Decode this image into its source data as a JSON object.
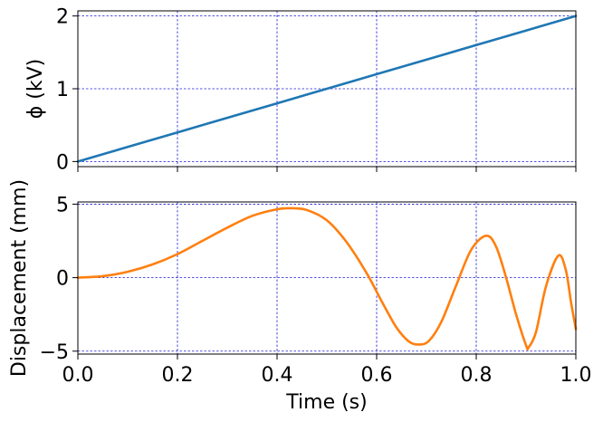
{
  "chart_data": [
    {
      "type": "line",
      "panel": "top",
      "ylabel": "ϕ (kV)",
      "xlabel": "",
      "xlim": [
        0.0,
        1.0
      ],
      "ylim": [
        -0.07,
        2.07
      ],
      "x_ticks": [
        0.0,
        0.2,
        0.4,
        0.6,
        0.8,
        1.0
      ],
      "x_tick_labels_visible": false,
      "y_ticks": [
        0,
        1,
        2
      ],
      "y_tick_labels": [
        "0",
        "1",
        "2"
      ],
      "grid": true,
      "series": [
        {
          "color": "#1f77b4",
          "x": [
            0.0,
            0.1,
            0.2,
            0.3,
            0.4,
            0.5,
            0.6,
            0.7,
            0.8,
            0.9,
            1.0
          ],
          "y": [
            0.0,
            0.2,
            0.4,
            0.6,
            0.8,
            1.0,
            1.2,
            1.4,
            1.6,
            1.8,
            2.0
          ]
        }
      ]
    },
    {
      "type": "line",
      "panel": "bottom",
      "ylabel": "Displacement (mm)",
      "xlabel": "Time (s)",
      "xlim": [
        0.0,
        1.0
      ],
      "ylim": [
        -5.2,
        5.15
      ],
      "x_ticks": [
        0.0,
        0.2,
        0.4,
        0.6,
        0.8,
        1.0
      ],
      "x_tick_labels": [
        "0.0",
        "0.2",
        "0.4",
        "0.6",
        "0.8",
        "1.0"
      ],
      "y_ticks": [
        -5,
        0,
        5
      ],
      "y_tick_labels": [
        "−5",
        "0",
        "5"
      ],
      "grid": true,
      "series": [
        {
          "color": "#ff7f0e",
          "x": [
            0.0,
            0.05,
            0.1,
            0.15,
            0.2,
            0.25,
            0.3,
            0.35,
            0.4,
            0.43,
            0.46,
            0.5,
            0.54,
            0.58,
            0.61,
            0.64,
            0.665,
            0.685,
            0.705,
            0.73,
            0.76,
            0.79,
            0.82,
            0.84,
            0.86,
            0.88,
            0.9,
            0.905,
            0.92,
            0.94,
            0.965,
            0.98,
            0.99,
            1.0
          ],
          "y": [
            0.0,
            0.1,
            0.4,
            0.9,
            1.6,
            2.5,
            3.4,
            4.2,
            4.65,
            4.72,
            4.6,
            3.9,
            2.4,
            0.3,
            -1.6,
            -3.4,
            -4.35,
            -4.55,
            -4.3,
            -3.0,
            -0.5,
            1.9,
            2.85,
            2.1,
            0.0,
            -2.5,
            -4.6,
            -4.75,
            -3.7,
            -0.6,
            1.5,
            0.5,
            -1.6,
            -3.5
          ]
        }
      ]
    }
  ]
}
